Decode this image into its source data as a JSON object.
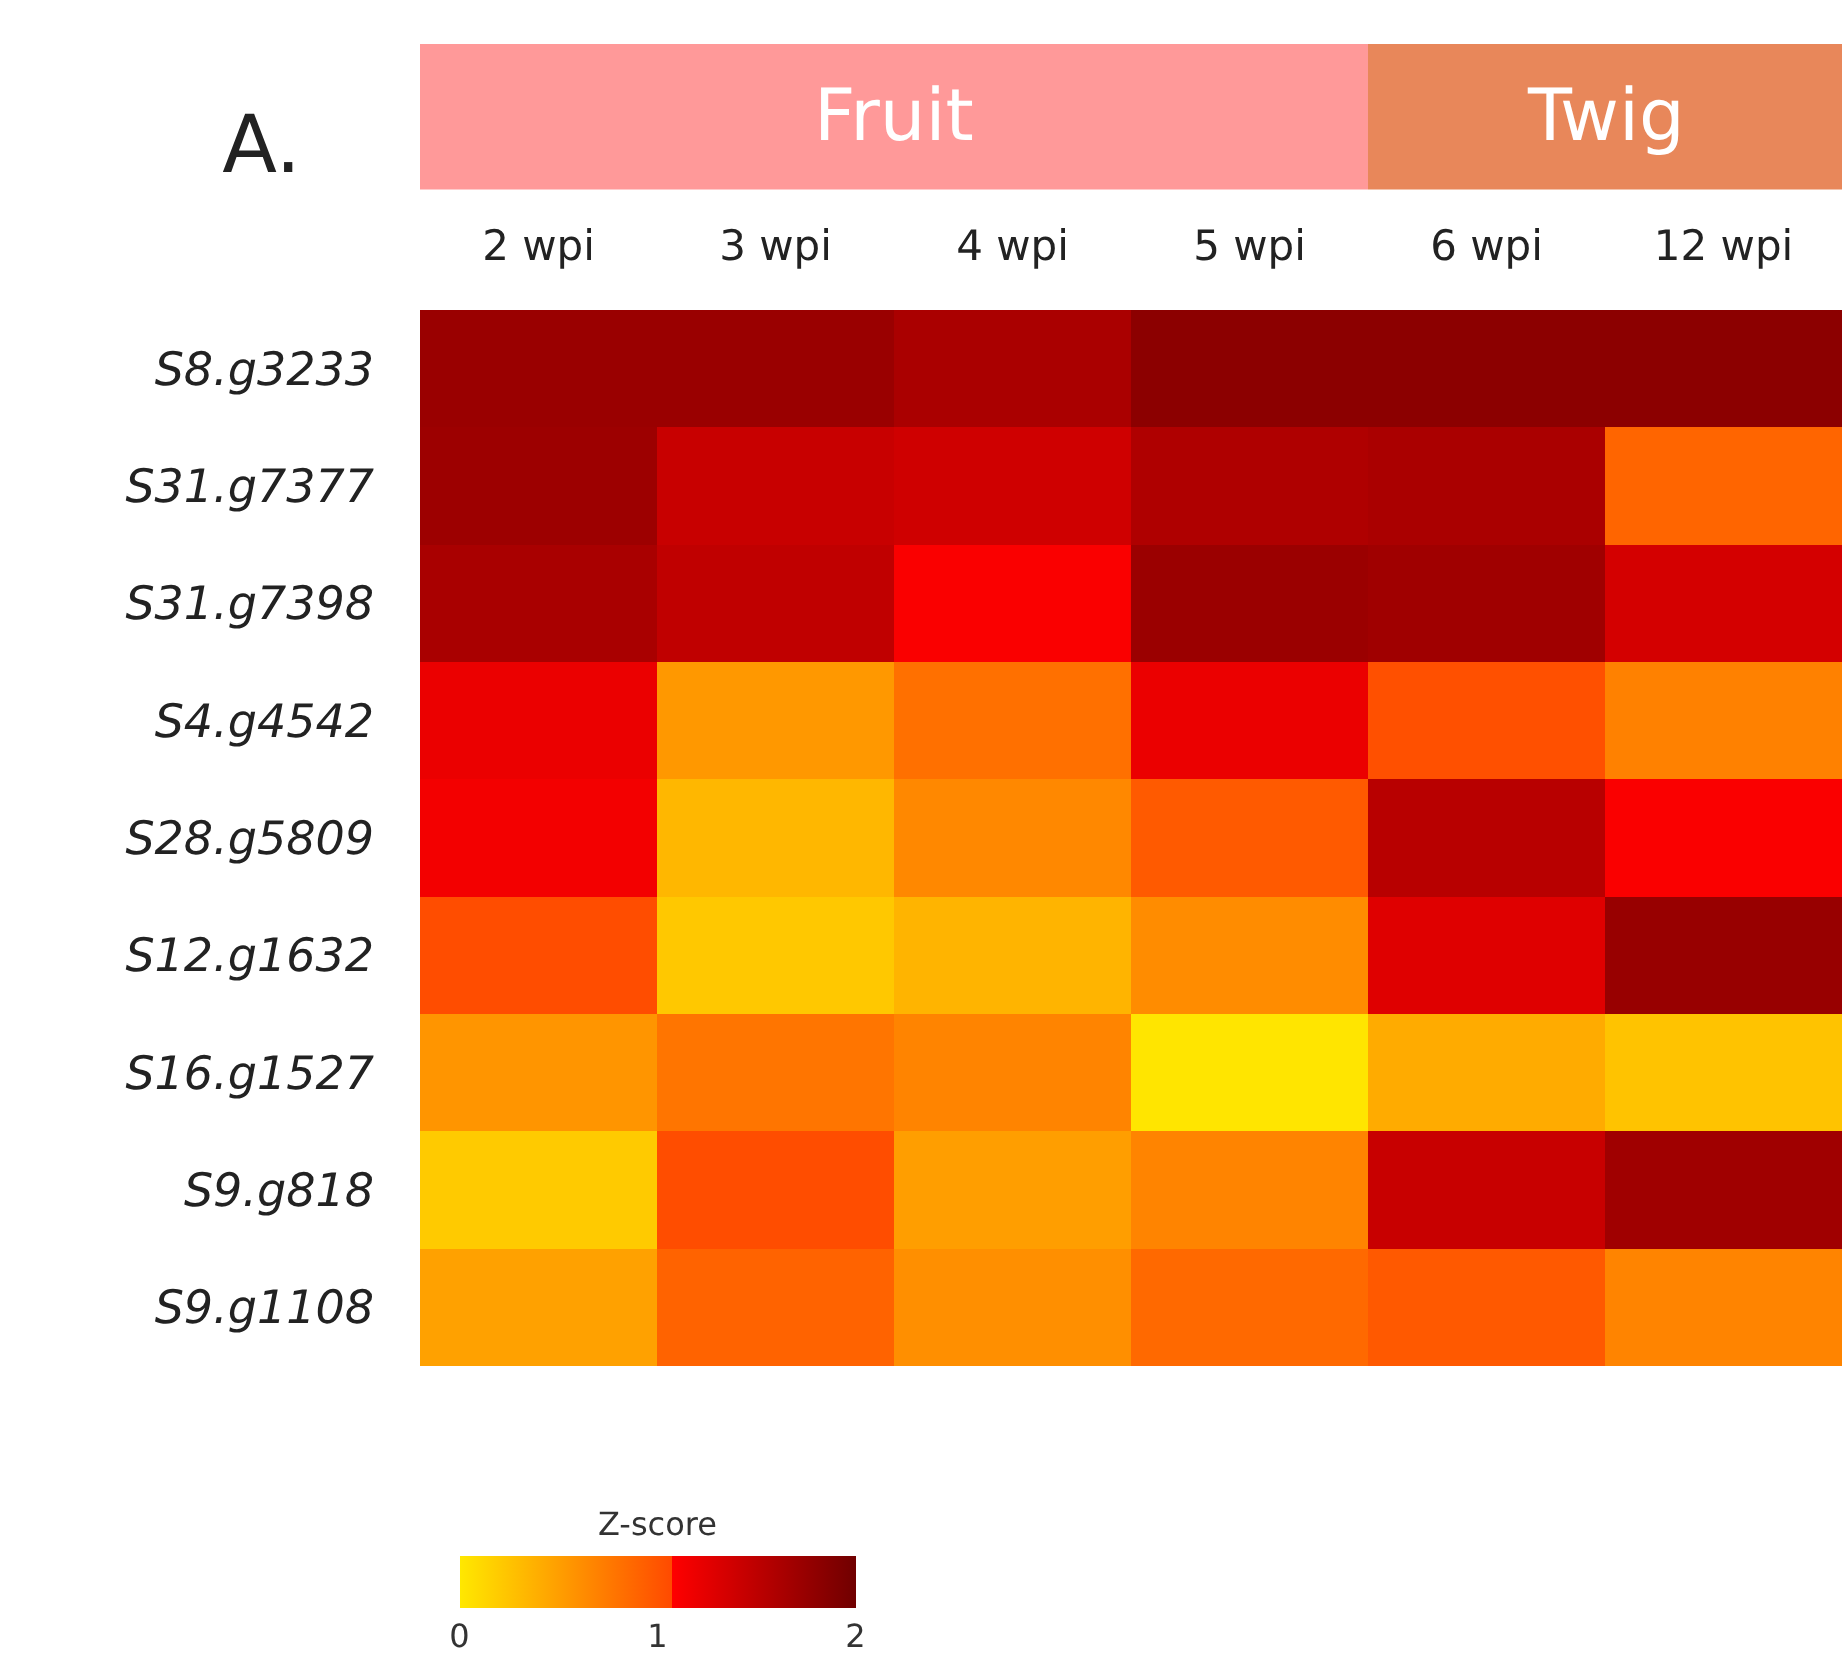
{
  "chart_data": {
    "type": "heatmap",
    "title": "A.",
    "clabel": "Z-score",
    "annotations": [
      "Fruit",
      "Twig"
    ],
    "categories": [
      "2 wpi",
      "3 wpi",
      "4 wpi",
      "5 wpi",
      "6 wpi",
      "12 wpi"
    ],
    "y_categories": [
      "S8.g3233",
      "S31.g7377",
      "S31.g7398",
      "S4.g4542",
      "S28.g5809",
      "S12.g1632",
      "S16.g1527",
      "S9.g818",
      "S9.g1108"
    ],
    "cells": [
      [
        1.73,
        1.73,
        1.62,
        1.82,
        1.82,
        1.82
      ],
      [
        1.71,
        1.43,
        1.38,
        1.59,
        1.62,
        0.89
      ],
      [
        1.63,
        1.48,
        1.1,
        1.72,
        1.69,
        1.35
      ],
      [
        1.2,
        0.54,
        0.81,
        1.2,
        1.03,
        0.7
      ],
      [
        1.15,
        0.33,
        0.65,
        0.96,
        1.53,
        1.1
      ],
      [
        1.05,
        0.22,
        0.35,
        0.62,
        1.28,
        1.74
      ],
      [
        0.56,
        0.78,
        0.68,
        0.02,
        0.41,
        0.25
      ],
      [
        0.2,
        1.05,
        0.5,
        0.68,
        1.43,
        1.69
      ],
      [
        0.48,
        0.9,
        0.6,
        0.86,
        0.97,
        0.68
      ]
    ],
    "clim": [
      0,
      2
    ],
    "cticks": [
      0,
      1,
      2
    ]
  }
}
